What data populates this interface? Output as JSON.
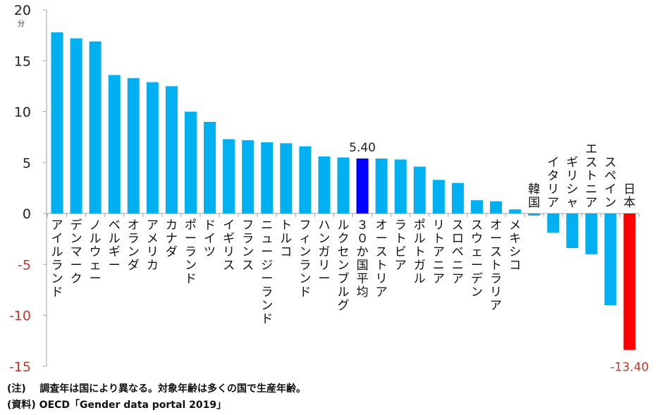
{
  "chart_data": {
    "type": "bar",
    "title": "",
    "xlabel": "",
    "ylabel": "",
    "unit_label": "分",
    "ylim": [
      -15,
      20
    ],
    "yticks": [
      20,
      15,
      10,
      5,
      0,
      -5,
      -10,
      -15
    ],
    "grid": false,
    "colors": {
      "default": "#00b0f0",
      "average": "#0000ff",
      "japan": "#ff0000",
      "negative_tick": "#c0392b",
      "positive_tick": "#222222",
      "axis": "#a0a0a0"
    },
    "categories": [
      "アイルランド",
      "デンマーク",
      "ノルウェー",
      "ベルギー",
      "オランダ",
      "アメリカ",
      "カナダ",
      "ポーランド",
      "ドイツ",
      "イギリス",
      "フランス",
      "ニュージーランド",
      "トルコ",
      "フィンランド",
      "ハンガリー",
      "ルクセンブルグ",
      "３０か国平均",
      "オーストリア",
      "ラトビア",
      "ポルトガル",
      "リトアニア",
      "スロベニア",
      "スウェーデン",
      "オーストラリア",
      "メキシコ",
      "韓国",
      "イタリア",
      "ギリシャ",
      "エストニア",
      "スペイン",
      "日本"
    ],
    "values": [
      17.8,
      17.2,
      16.9,
      13.6,
      13.3,
      12.9,
      12.5,
      10.0,
      9.0,
      7.3,
      7.2,
      7.0,
      6.9,
      6.6,
      5.6,
      5.5,
      5.4,
      5.4,
      5.3,
      4.6,
      3.3,
      3.0,
      1.3,
      1.2,
      0.4,
      -0.2,
      -1.9,
      -3.4,
      -4.0,
      -9.0,
      -13.4
    ],
    "highlight": {
      "average_index": 16,
      "japan_index": 30
    },
    "data_labels": [
      {
        "index": 16,
        "text": "5.40"
      },
      {
        "index": 30,
        "text": "-13.40"
      }
    ]
  },
  "notes": [
    {
      "label": "(注)",
      "text": "調査年は国により異なる。対象年齢は多くの国で生産年齢。"
    },
    {
      "label": "(資料)",
      "text": "OECD「Gender data portal 2019」"
    }
  ]
}
